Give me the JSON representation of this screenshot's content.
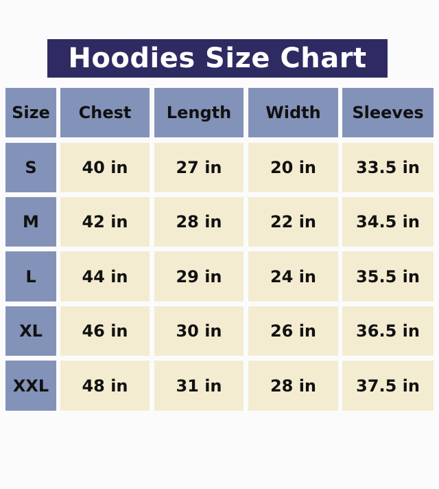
{
  "title": "Hoodies Size Chart",
  "colors": {
    "title_bg": "#2e2a62",
    "header_bg": "#8392b8",
    "cell_bg": "#f4ecd0"
  },
  "headers": [
    "Size",
    "Chest",
    "Length",
    "Width",
    "Sleeves"
  ],
  "rows": [
    [
      "S",
      "40 in",
      "27 in",
      "20 in",
      "33.5 in"
    ],
    [
      "M",
      "42 in",
      "28 in",
      "22 in",
      "34.5 in"
    ],
    [
      "L",
      "44 in",
      "29 in",
      "24 in",
      "35.5 in"
    ],
    [
      "XL",
      "46 in",
      "30 in",
      "26 in",
      "36.5 in"
    ],
    [
      "XXL",
      "48 in",
      "31 in",
      "28 in",
      "37.5 in"
    ]
  ]
}
